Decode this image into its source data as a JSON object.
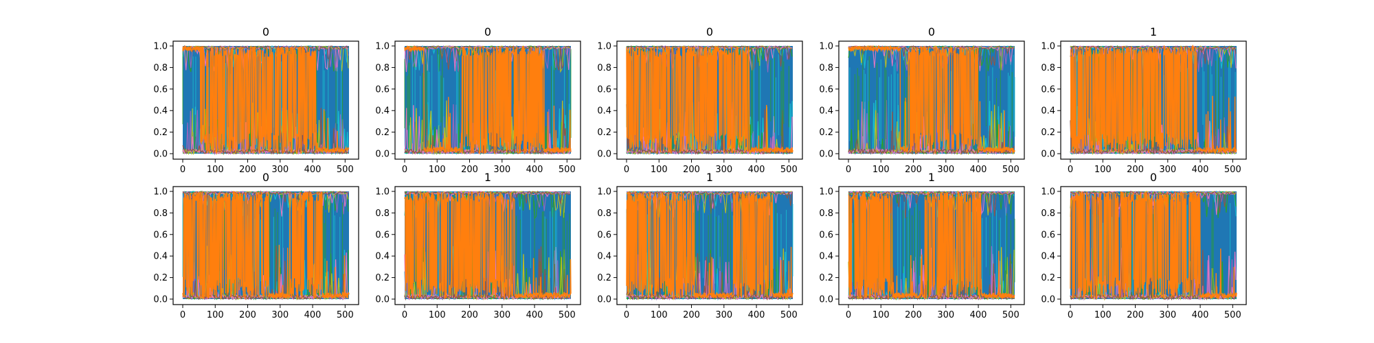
{
  "chart_data": {
    "type": "line",
    "x_range": [
      0,
      512
    ],
    "xticks": [
      0,
      100,
      200,
      300,
      400,
      500
    ],
    "xtick_labels": [
      "0",
      "100",
      "200",
      "300",
      "400",
      "500"
    ],
    "ylim": [
      0.0,
      1.0
    ],
    "yticks": [
      0.0,
      0.2,
      0.4,
      0.6,
      0.8,
      1.0
    ],
    "ytick_labels": [
      "0.0",
      "0.2",
      "0.4",
      "0.6",
      "0.8",
      "1.0"
    ],
    "series_colors": {
      "background_band": "#1f77b4",
      "dominant": "#ff7f0e",
      "minor": [
        "#17becf",
        "#2ca02c",
        "#9467bd",
        "#bcbd22",
        "#e377c2",
        "#8c564b"
      ]
    },
    "grid": false,
    "legend": false,
    "panels": [
      {
        "title": "0",
        "dominant_segments": [
          [
            0,
            55,
            "high"
          ],
          [
            55,
            410,
            "mixed"
          ],
          [
            410,
            512,
            "low"
          ]
        ]
      },
      {
        "title": "0",
        "dominant_segments": [
          [
            0,
            60,
            "high"
          ],
          [
            60,
            175,
            "low"
          ],
          [
            175,
            430,
            "mixed"
          ],
          [
            430,
            512,
            "low"
          ]
        ]
      },
      {
        "title": "0",
        "dominant_segments": [
          [
            0,
            380,
            "mixed"
          ],
          [
            380,
            512,
            "low"
          ]
        ]
      },
      {
        "title": "0",
        "dominant_segments": [
          [
            0,
            160,
            "high"
          ],
          [
            160,
            185,
            "low"
          ],
          [
            185,
            400,
            "mixed"
          ],
          [
            400,
            512,
            "low"
          ]
        ]
      },
      {
        "title": "1",
        "dominant_segments": [
          [
            0,
            390,
            "mixed"
          ],
          [
            390,
            512,
            "low"
          ]
        ]
      },
      {
        "title": "0",
        "dominant_segments": [
          [
            0,
            265,
            "mixed"
          ],
          [
            265,
            330,
            "low"
          ],
          [
            330,
            430,
            "mixed"
          ],
          [
            430,
            512,
            "low"
          ]
        ]
      },
      {
        "title": "1",
        "dominant_segments": [
          [
            0,
            340,
            "mixed"
          ],
          [
            340,
            512,
            "low"
          ]
        ]
      },
      {
        "title": "1",
        "dominant_segments": [
          [
            0,
            210,
            "mixed"
          ],
          [
            210,
            330,
            "low"
          ],
          [
            330,
            450,
            "mixed"
          ],
          [
            450,
            512,
            "low"
          ]
        ]
      },
      {
        "title": "1",
        "dominant_segments": [
          [
            0,
            140,
            "mixed"
          ],
          [
            140,
            235,
            "low"
          ],
          [
            235,
            410,
            "mixed"
          ],
          [
            410,
            512,
            "low"
          ]
        ]
      },
      {
        "title": "0",
        "dominant_segments": [
          [
            0,
            400,
            "mixed"
          ],
          [
            400,
            512,
            "low"
          ]
        ]
      }
    ]
  }
}
